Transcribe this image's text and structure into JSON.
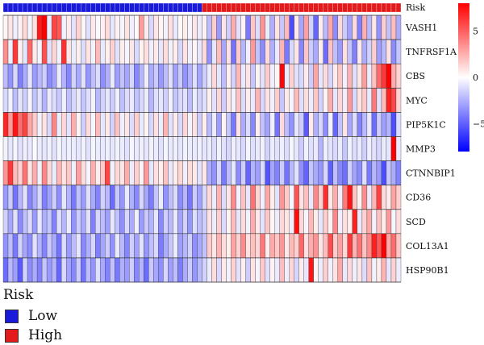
{
  "chart_data": {
    "type": "heatmap",
    "title": "",
    "annotation_label": "Risk",
    "rows": [
      "VASH1",
      "TNFRSF1A",
      "CBS",
      "MYC",
      "PIP5K1C",
      "MMP3",
      "CTNNBIP1",
      "CD36",
      "SCD",
      "COL13A1",
      "HSP90B1"
    ],
    "n_samples": 82,
    "risk_groups": [
      {
        "name": "Low",
        "count": 41,
        "color": "#1a1adb"
      },
      {
        "name": "High",
        "count": 41,
        "color": "#e31a1c"
      }
    ],
    "colorbar": {
      "range": [
        -8,
        8
      ],
      "ticks": [
        {
          "value": 5,
          "label": "5"
        },
        {
          "value": 0,
          "label": "0"
        },
        {
          "value": -5,
          "label": "−5"
        }
      ],
      "low_color": "#0000ff",
      "mid_color": "#ffffff",
      "high_color": "#ff0000"
    },
    "values": [
      [
        0.3,
        0.8,
        -0.5,
        0.4,
        1.2,
        -0.3,
        1.0,
        7.2,
        8.0,
        -0.6,
        5.8,
        5.2,
        -0.4,
        0.6,
        -0.9,
        1.4,
        0.3,
        -1.0,
        0.7,
        -0.2,
        0.5,
        1.1,
        -0.8,
        0.4,
        -0.3,
        0.9,
        -0.5,
        0.2,
        3.1,
        0.6,
        -1.2,
        0.8,
        0.3,
        -0.4,
        1.0,
        -0.7,
        0.2,
        0.5,
        -0.3,
        0.8,
        -0.6,
        0.4,
        -2.1,
        1.6,
        -3.2,
        0.8,
        -1.5,
        2.6,
        -0.9,
        0.4,
        -4.2,
        1.8,
        -1.1,
        3.4,
        -0.6,
        -2.5,
        0.9,
        -1.8,
        2.2,
        -5.6,
        0.7,
        -2.8,
        3.0,
        -1.4,
        -4.8,
        0.6,
        -2.2,
        2.8,
        -3.6,
        1.2,
        -1.6,
        -2.9,
        1.1,
        -4.0,
        2.5,
        -2.2,
        0.8,
        -3.4,
        1.5,
        -1.9,
        2.1,
        -2.6
      ],
      [
        3.6,
        -0.5,
        6.2,
        0.4,
        -0.8,
        4.8,
        0.7,
        -0.3,
        5.5,
        -0.9,
        1.3,
        -0.4,
        6.5,
        0.8,
        -0.6,
        0.5,
        -1.1,
        0.9,
        -0.4,
        2.2,
        -0.7,
        0.5,
        1.4,
        -0.9,
        0.6,
        -0.3,
        0.8,
        -1.2,
        0.4,
        1.0,
        -0.5,
        0.7,
        -0.8,
        1.1,
        -0.4,
        0.6,
        -1.3,
        0.9,
        -0.5,
        0.3,
        -0.8,
        1.2,
        -3.4,
        -0.8,
        2.1,
        -2.8,
        0.9,
        -4.4,
        1.6,
        -2.3,
        -0.5,
        3.2,
        -1.9,
        -3.6,
        1.1,
        -2.5,
        -0.7,
        2.4,
        -4.2,
        -1.2,
        0.8,
        -3.8,
        1.8,
        -1.6,
        -2.7,
        0.6,
        -4.6,
        1.9,
        -2.0,
        -3.2,
        1.0,
        -1.8,
        -4.0,
        0.7,
        -2.6,
        -1.4,
        1.5,
        -3.0,
        -2.2,
        0.9,
        -3.6,
        -1.8
      ],
      [
        -2.1,
        -3.4,
        -1.2,
        -4.0,
        -2.6,
        -0.8,
        -3.1,
        -2.2,
        -1.5,
        -3.6,
        -2.9,
        -0.6,
        -2.4,
        -3.8,
        -1.4,
        -2.7,
        -0.9,
        -3.3,
        -2.0,
        -1.1,
        -3.5,
        -2.5,
        -0.7,
        -3.0,
        -1.9,
        -2.8,
        -1.3,
        -3.7,
        -2.3,
        -0.5,
        -2.6,
        -1.7,
        -3.2,
        -2.1,
        -0.9,
        -2.9,
        -1.6,
        -3.4,
        -2.4,
        -1.0,
        -2.8,
        -1.5,
        -0.6,
        1.2,
        -0.8,
        -2.1,
        0.5,
        -1.4,
        2.3,
        -0.7,
        0.9,
        -1.8,
        0.4,
        -0.9,
        1.6,
        -0.5,
        0.3,
        7.8,
        -0.6,
        1.4,
        -0.9,
        -1.2,
        0.7,
        -1.6,
        2.9,
        -0.8,
        1.1,
        -1.3,
        0.6,
        1.8,
        -0.4,
        2.4,
        -1.0,
        0.8,
        3.1,
        -0.6,
        1.9,
        4.6,
        6.2,
        8.0,
        2.6,
        1.4
      ],
      [
        -1.2,
        -0.4,
        -2.1,
        -0.8,
        -1.5,
        -0.3,
        -1.9,
        -0.9,
        -2.4,
        -0.6,
        -1.1,
        -1.7,
        -0.5,
        -2.0,
        -1.3,
        -0.7,
        -1.8,
        -1.0,
        -0.4,
        -2.2,
        -1.4,
        -0.8,
        -1.6,
        -0.5,
        -2.0,
        -1.1,
        -0.7,
        -1.9,
        -1.3,
        -0.6,
        -2.3,
        -1.0,
        -0.8,
        -1.5,
        -0.4,
        -1.8,
        -1.2,
        -0.9,
        -2.1,
        -0.6,
        -1.4,
        -1.0,
        0.5,
        -0.9,
        1.3,
        -1.6,
        0.8,
        -0.4,
        1.9,
        -1.1,
        0.6,
        -0.7,
        2.4,
        -1.3,
        0.9,
        -0.5,
        1.6,
        -1.8,
        0.7,
        -0.3,
        2.2,
        -1.0,
        1.1,
        -0.6,
        1.8,
        -1.4,
        0.4,
        2.6,
        -0.8,
        1.3,
        -0.5,
        3.2,
        -1.2,
        0.9,
        1.7,
        -0.7,
        4.2,
        -0.9,
        2.1,
        7.0,
        5.8,
        1.4
      ],
      [
        6.8,
        3.2,
        7.4,
        4.6,
        5.9,
        2.8,
        1.6,
        -0.4,
        0.9,
        -1.2,
        3.8,
        -0.6,
        1.3,
        -0.9,
        2.6,
        0.4,
        -1.5,
        1.1,
        -0.3,
        2.2,
        -0.8,
        0.7,
        -1.4,
        1.9,
        -0.5,
        0.8,
        -1.1,
        1.5,
        -0.7,
        0.3,
        -1.3,
        1.0,
        -0.6,
        2.4,
        -0.9,
        0.6,
        -1.2,
        1.3,
        -0.4,
        0.9,
        -1.6,
        0.5,
        -2.2,
        -0.6,
        -3.1,
        0.4,
        -1.8,
        -4.2,
        0.9,
        -2.6,
        -1.1,
        -3.8,
        0.6,
        -1.9,
        -2.9,
        -0.5,
        -4.4,
        1.2,
        -2.1,
        -3.4,
        -0.8,
        -1.6,
        -5.2,
        0.7,
        -2.5,
        -1.3,
        -3.6,
        -0.4,
        -4.8,
        -1.9,
        0.8,
        -2.8,
        -1.0,
        -3.9,
        -2.2,
        -0.7,
        -4.6,
        -1.5,
        -3.0,
        -2.4,
        -5.6,
        -1.1
      ],
      [
        -0.4,
        -0.8,
        -0.3,
        -0.9,
        -0.5,
        -0.7,
        -0.2,
        -0.6,
        -0.8,
        -0.4,
        -0.9,
        -0.3,
        -0.7,
        -0.5,
        -0.6,
        -0.8,
        -0.4,
        -0.9,
        -0.3,
        -0.6,
        -0.7,
        -0.5,
        -0.8,
        -0.4,
        -0.6,
        -0.9,
        -0.3,
        -0.7,
        -0.5,
        -0.8,
        -0.4,
        -0.6,
        -0.9,
        -0.3,
        -0.7,
        -0.5,
        -0.8,
        -0.4,
        -0.6,
        -0.7,
        -0.5,
        -0.8,
        -0.6,
        -1.1,
        -0.4,
        -0.9,
        -1.3,
        -0.5,
        -0.8,
        -1.2,
        -0.3,
        -1.0,
        -0.7,
        -0.4,
        -1.4,
        -0.6,
        -0.9,
        -0.5,
        -1.1,
        -0.3,
        -0.8,
        -1.6,
        -0.4,
        -1.0,
        -0.7,
        -2.4,
        -0.5,
        -0.9,
        -1.2,
        -0.6,
        -1.8,
        -0.4,
        -1.1,
        -0.7,
        -1.5,
        -0.5,
        -0.9,
        -1.3,
        -0.6,
        -0.8,
        8.0,
        -0.7
      ],
      [
        3.4,
        6.2,
        2.1,
        1.4,
        4.4,
        0.8,
        2.6,
        -0.4,
        3.8,
        1.2,
        -0.6,
        2.3,
        0.9,
        1.8,
        -0.5,
        3.0,
        1.1,
        -0.3,
        2.5,
        0.6,
        1.7,
        5.8,
        -0.4,
        1.2,
        0.8,
        2.6,
        -0.6,
        1.5,
        0.4,
        3.2,
        -0.8,
        1.0,
        0.5,
        1.9,
        -0.7,
        0.6,
        1.3,
        -0.5,
        1.1,
        0.7,
        -0.9,
        0.8,
        -2.6,
        -3.4,
        -1.2,
        -4.2,
        -2.0,
        -0.8,
        -3.6,
        -1.5,
        -4.8,
        -2.4,
        -3.0,
        -1.1,
        -5.4,
        -2.8,
        -3.9,
        -1.6,
        -4.4,
        -2.2,
        -0.9,
        -3.5,
        -4.9,
        -1.8,
        -2.7,
        -3.3,
        -1.3,
        -5.0,
        -2.0,
        -3.8,
        -4.5,
        -1.4,
        -2.9,
        -3.6,
        -1.0,
        -4.2,
        -2.3,
        -3.1,
        -5.6,
        -1.7,
        -2.6,
        -3.9
      ],
      [
        -3.2,
        -1.6,
        -4.4,
        -2.3,
        -0.9,
        -3.8,
        -2.6,
        -1.2,
        -4.0,
        -2.9,
        -1.5,
        -3.5,
        -0.8,
        -2.4,
        -4.2,
        -1.9,
        -3.1,
        -1.0,
        -2.7,
        -3.9,
        -1.4,
        -2.2,
        -4.6,
        -1.7,
        -3.3,
        -0.7,
        -2.5,
        -3.7,
        -1.3,
        -2.8,
        -4.1,
        -1.8,
        -0.6,
        -3.4,
        -2.0,
        -1.1,
        -3.6,
        -2.3,
        -4.3,
        -1.6,
        -2.9,
        -1.2,
        1.2,
        -0.6,
        2.4,
        -1.1,
        0.8,
        3.6,
        -0.4,
        1.9,
        -0.8,
        4.4,
        1.3,
        -0.5,
        2.8,
        0.6,
        -0.9,
        3.3,
        1.6,
        -0.3,
        5.4,
        0.9,
        2.1,
        -0.7,
        3.8,
        1.4,
        6.6,
        0.7,
        2.6,
        -0.5,
        4.2,
        7.4,
        1.8,
        0.4,
        3.6,
        -0.6,
        2.3,
        6.0,
        1.1,
        0.6,
        2.9,
        1.5
      ],
      [
        -1.4,
        -2.8,
        -0.9,
        -3.6,
        -2.0,
        -1.1,
        -3.2,
        -0.7,
        -2.5,
        -1.8,
        -3.9,
        -1.0,
        -2.3,
        -0.6,
        -3.4,
        -1.6,
        -2.7,
        -0.9,
        -4.0,
        -1.3,
        -2.1,
        -3.0,
        -0.8,
        -1.9,
        -3.5,
        -1.2,
        -2.6,
        -0.5,
        -3.1,
        -1.7,
        -2.4,
        -0.8,
        -3.7,
        -1.5,
        -2.2,
        -0.7,
        -2.9,
        -1.4,
        -3.3,
        -1.0,
        -2.0,
        -1.5,
        0.9,
        -0.6,
        1.5,
        -1.2,
        0.4,
        2.1,
        -0.8,
        1.1,
        -0.4,
        2.6,
        0.7,
        -0.9,
        1.8,
        0.3,
        -0.6,
        1.3,
        0.8,
        -0.5,
        7.6,
        1.2,
        -0.3,
        2.2,
        0.6,
        -0.8,
        1.6,
        0.4,
        3.8,
        -0.5,
        1.0,
        0.5,
        7.0,
        -0.7,
        1.4,
        2.8,
        -0.4,
        1.9,
        0.6,
        3.2,
        -0.3,
        1.1
      ],
      [
        -3.4,
        -2.0,
        -4.2,
        -1.4,
        -2.8,
        -3.6,
        -0.9,
        -2.4,
        -3.9,
        -1.7,
        -2.6,
        -4.4,
        -1.1,
        -3.2,
        -2.1,
        -0.8,
        -3.7,
        -2.5,
        -1.3,
        -4.0,
        -2.8,
        -1.6,
        -3.4,
        -0.7,
        -2.2,
        -3.8,
        -1.5,
        -2.9,
        -0.9,
        -3.3,
        -2.0,
        -1.2,
        -4.1,
        -2.6,
        -1.8,
        -0.6,
        -3.0,
        -2.3,
        -1.4,
        -3.5,
        -2.7,
        -1.9,
        1.6,
        0.8,
        2.4,
        1.1,
        0.5,
        2.9,
        1.4,
        3.6,
        0.9,
        2.0,
        1.3,
        4.2,
        0.6,
        2.7,
        1.8,
        3.3,
        0.7,
        2.2,
        1.5,
        4.8,
        1.0,
        2.6,
        3.4,
        0.8,
        2.1,
        5.6,
        1.6,
        3.0,
        1.2,
        6.2,
        2.4,
        4.4,
        1.9,
        3.6,
        7.0,
        5.2,
        8.0,
        2.8,
        4.6,
        1.8
      ],
      [
        -4.6,
        -2.2,
        -3.0,
        -5.2,
        -1.4,
        -3.6,
        -2.6,
        -4.0,
        -1.8,
        -3.2,
        -2.4,
        -4.8,
        -1.2,
        -2.9,
        -3.8,
        -1.6,
        -4.4,
        -2.1,
        -3.4,
        -1.0,
        -2.7,
        -3.9,
        -1.9,
        -4.2,
        -2.5,
        -3.1,
        -1.5,
        -3.7,
        -2.3,
        -4.6,
        -1.7,
        -2.8,
        -3.5,
        -1.3,
        -3.0,
        -2.0,
        -4.1,
        -2.6,
        -1.6,
        -3.3,
        -2.2,
        -1.4,
        -0.6,
        1.1,
        -1.2,
        0.7,
        -0.4,
        1.4,
        -0.9,
        0.5,
        -1.6,
        0.9,
        -0.3,
        1.7,
        -1.0,
        0.4,
        -0.7,
        2.1,
        -0.5,
        1.3,
        -1.3,
        0.6,
        -0.8,
        7.4,
        0.3,
        -0.6,
        1.5,
        -0.4,
        0.9,
        2.8,
        -0.7,
        1.2,
        -0.5,
        0.8,
        -1.1,
        1.9,
        -0.4,
        0.6,
        2.4,
        -0.8,
        1.4,
        -0.6
      ]
    ]
  }
}
